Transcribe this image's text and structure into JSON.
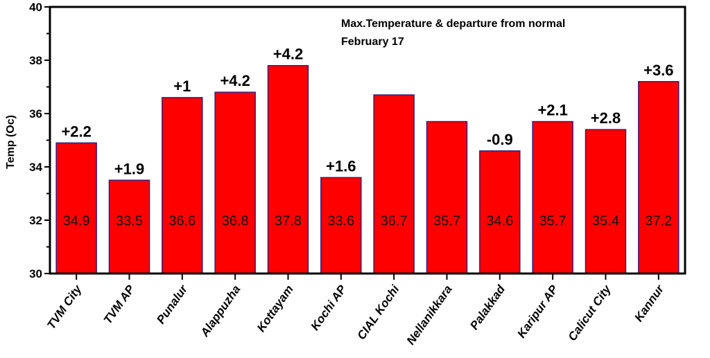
{
  "chart_data": {
    "type": "bar",
    "title": "Max.Temperature & departure from normal",
    "subtitle": "February 17",
    "xlabel": "",
    "ylabel": "Temp (Oc)",
    "ylim": [
      30,
      40
    ],
    "yticks": [
      30,
      32,
      34,
      36,
      38,
      40
    ],
    "categories": [
      "TVM  City",
      "TVM AP",
      "Punalur",
      "Alappuzha",
      "Kottayam",
      "Kochi AP",
      "CIAL Kochi",
      "Nellanikkara",
      "Palakkad",
      "Karipur AP",
      "Calicut City",
      "Kannur"
    ],
    "values": [
      34.9,
      33.5,
      36.6,
      36.8,
      37.8,
      33.6,
      36.7,
      35.7,
      34.6,
      35.7,
      35.4,
      37.2
    ],
    "value_labels": [
      "34.9",
      "33.5",
      "36.6",
      "36.8",
      "37.8",
      "33.6",
      "36.7",
      "35.7",
      "34.6",
      "35.7",
      "35.4",
      "37.2"
    ],
    "departures": [
      "+2.2",
      "+1.9",
      "+1",
      "+4.2",
      "+4.2",
      "+1.6",
      "",
      "",
      "-0.9",
      "+2.1",
      "+2.8",
      "+3.6"
    ],
    "bar_color": "#ff0000",
    "bar_edge_color": "#3a1a7a",
    "grid": false
  }
}
